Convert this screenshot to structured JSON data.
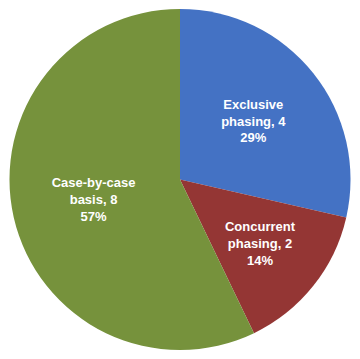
{
  "chart_data": {
    "type": "pie",
    "values": [
      4,
      2,
      8
    ],
    "value_labels": [
      "Exclusive\nphasing, 4\n29%",
      "Concurrent\nphasing, 2\n14%",
      "Case-by-case\nbasis, 8\n57%"
    ],
    "colors": [
      "#4472C4",
      "#943634",
      "#76923C"
    ],
    "data_labels": true
  }
}
